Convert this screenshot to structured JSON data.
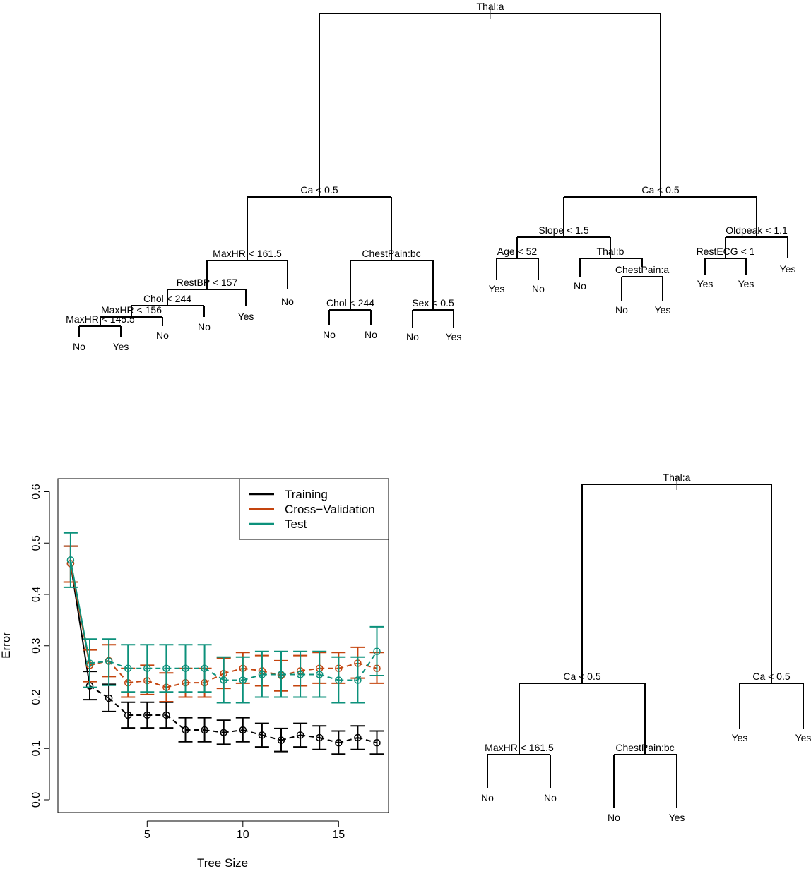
{
  "colors": {
    "training": "#000000",
    "cross_validation": "#C4440E",
    "test": "#0C917B",
    "tree": "#000000"
  },
  "top_tree": {
    "nodes": [
      {
        "id": "root",
        "label": "Thal:a"
      },
      {
        "id": "L",
        "label": "Ca < 0.5"
      },
      {
        "id": "R",
        "label": "Ca < 0.5"
      },
      {
        "id": "LL",
        "label": "MaxHR < 161.5"
      },
      {
        "id": "LR",
        "label": "ChestPain:bc"
      },
      {
        "id": "RL",
        "label": "Slope < 1.5"
      },
      {
        "id": "RR",
        "label": "Oldpeak < 1.1"
      },
      {
        "id": "LLL",
        "label": "RestBP < 157"
      },
      {
        "id": "LLLL",
        "label": "Chol < 244"
      },
      {
        "id": "LLLLL",
        "label": "MaxHR < 156"
      },
      {
        "id": "LLLLLL",
        "label": "MaxHR < 145.5"
      },
      {
        "id": "LRL",
        "label": "Chol < 244"
      },
      {
        "id": "LRR",
        "label": "Sex < 0.5"
      },
      {
        "id": "RLL",
        "label": "Age < 52"
      },
      {
        "id": "RLR",
        "label": "Thal:b"
      },
      {
        "id": "RLRR",
        "label": "ChestPain:a"
      },
      {
        "id": "RRL",
        "label": "RestECG < 1"
      }
    ],
    "leaves": [
      {
        "id": "l1",
        "label": "No"
      },
      {
        "id": "l2",
        "label": "Yes"
      },
      {
        "id": "l3",
        "label": "No"
      },
      {
        "id": "l4",
        "label": "No"
      },
      {
        "id": "l5",
        "label": "Yes"
      },
      {
        "id": "l6",
        "label": "No"
      },
      {
        "id": "l7",
        "label": "No"
      },
      {
        "id": "l8",
        "label": "No"
      },
      {
        "id": "l9",
        "label": "No"
      },
      {
        "id": "l10",
        "label": "Yes"
      },
      {
        "id": "l11",
        "label": "Yes"
      },
      {
        "id": "l12",
        "label": "No"
      },
      {
        "id": "l13",
        "label": "No"
      },
      {
        "id": "l14",
        "label": "No"
      },
      {
        "id": "l15",
        "label": "Yes"
      },
      {
        "id": "l16",
        "label": "Yes"
      },
      {
        "id": "l17",
        "label": "Yes"
      },
      {
        "id": "l18",
        "label": "Yes"
      }
    ]
  },
  "pruned_tree": {
    "nodes": [
      {
        "id": "root",
        "label": "Thal:a"
      },
      {
        "id": "L",
        "label": "Ca < 0.5"
      },
      {
        "id": "R",
        "label": "Ca < 0.5"
      },
      {
        "id": "LL",
        "label": "MaxHR < 161.5"
      },
      {
        "id": "LR",
        "label": "ChestPain:bc"
      }
    ],
    "leaves": [
      {
        "id": "p1",
        "label": "No"
      },
      {
        "id": "p2",
        "label": "No"
      },
      {
        "id": "p3",
        "label": "No"
      },
      {
        "id": "p4",
        "label": "Yes"
      },
      {
        "id": "p5",
        "label": "Yes"
      },
      {
        "id": "p6",
        "label": "Yes"
      }
    ]
  },
  "chart_data": {
    "type": "line",
    "title": "",
    "xlabel": "Tree Size",
    "ylabel": "Error",
    "xlim": [
      0.5,
      17.5
    ],
    "ylim": [
      0,
      0.62
    ],
    "x_ticks": [
      5,
      10,
      15
    ],
    "y_ticks": [
      0.0,
      0.1,
      0.2,
      0.3,
      0.4,
      0.5,
      0.6
    ],
    "x_tick_labels": [
      "5",
      "10",
      "15"
    ],
    "y_tick_labels": [
      "0.0",
      "0.1",
      "0.2",
      "0.3",
      "0.4",
      "0.5",
      "0.6"
    ],
    "legend_position": "top-right",
    "legend": [
      "Training",
      "Cross−Validation",
      "Test"
    ],
    "x": [
      1,
      2,
      3,
      4,
      5,
      6,
      7,
      8,
      9,
      10,
      11,
      12,
      13,
      14,
      15,
      16,
      17
    ],
    "series": [
      {
        "name": "Training",
        "values": [
          0.46,
          0.222,
          0.198,
          0.165,
          0.165,
          0.165,
          0.136,
          0.136,
          0.131,
          0.136,
          0.126,
          0.116,
          0.126,
          0.121,
          0.111,
          0.121,
          0.111
        ],
        "lower": [
          0.424,
          0.195,
          0.172,
          0.14,
          0.14,
          0.14,
          0.113,
          0.113,
          0.108,
          0.113,
          0.103,
          0.094,
          0.103,
          0.098,
          0.089,
          0.098,
          0.089
        ],
        "upper": [
          0.494,
          0.25,
          0.225,
          0.19,
          0.19,
          0.19,
          0.16,
          0.16,
          0.155,
          0.16,
          0.149,
          0.139,
          0.149,
          0.144,
          0.134,
          0.144,
          0.134
        ]
      },
      {
        "name": "Cross−Validation",
        "values": [
          0.46,
          0.262,
          0.271,
          0.228,
          0.232,
          0.219,
          0.228,
          0.228,
          0.246,
          0.256,
          0.251,
          0.242,
          0.251,
          0.256,
          0.256,
          0.266,
          0.256
        ],
        "lower": [
          0.424,
          0.23,
          0.24,
          0.2,
          0.205,
          0.191,
          0.2,
          0.2,
          0.217,
          0.227,
          0.222,
          0.212,
          0.222,
          0.227,
          0.227,
          0.237,
          0.227
        ],
        "upper": [
          0.494,
          0.292,
          0.302,
          0.256,
          0.262,
          0.247,
          0.256,
          0.256,
          0.276,
          0.287,
          0.281,
          0.271,
          0.281,
          0.287,
          0.287,
          0.297,
          0.287
        ]
      },
      {
        "name": "Test",
        "values": [
          0.467,
          0.266,
          0.27,
          0.256,
          0.256,
          0.256,
          0.256,
          0.256,
          0.233,
          0.233,
          0.244,
          0.244,
          0.244,
          0.244,
          0.233,
          0.233,
          0.289
        ],
        "lower": [
          0.414,
          0.219,
          0.223,
          0.21,
          0.21,
          0.21,
          0.21,
          0.21,
          0.189,
          0.189,
          0.2,
          0.2,
          0.2,
          0.2,
          0.189,
          0.189,
          0.242
        ],
        "upper": [
          0.52,
          0.313,
          0.313,
          0.302,
          0.302,
          0.302,
          0.302,
          0.302,
          0.278,
          0.278,
          0.289,
          0.289,
          0.289,
          0.289,
          0.278,
          0.278,
          0.337
        ]
      }
    ]
  }
}
